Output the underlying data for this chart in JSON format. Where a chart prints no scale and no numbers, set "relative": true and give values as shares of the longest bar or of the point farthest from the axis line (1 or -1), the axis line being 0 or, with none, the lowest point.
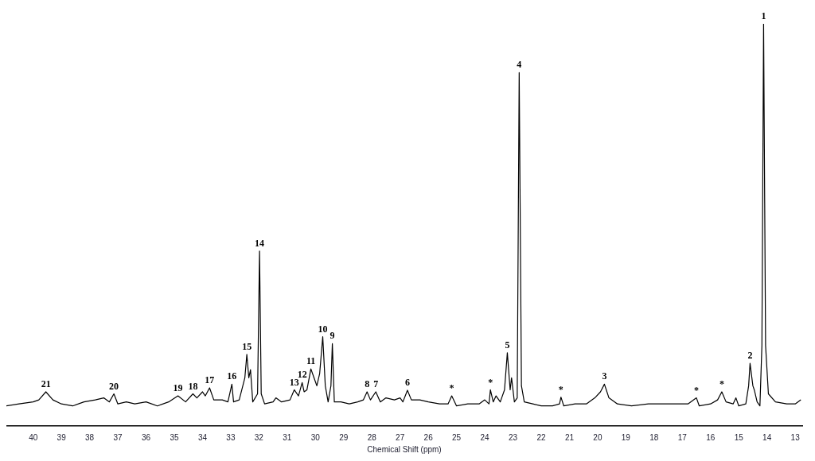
{
  "chart_data": {
    "type": "line",
    "relative": true,
    "xlabel": "Chemical Shift (ppm)",
    "xlim": [
      40.95,
      12.75
    ],
    "xticks": [
      40,
      39,
      38,
      37,
      36,
      35,
      34,
      33,
      32,
      31,
      30,
      29,
      28,
      27,
      26,
      25,
      24,
      23,
      22,
      21,
      20,
      19,
      18,
      17,
      16,
      15,
      14,
      13
    ],
    "grid": false,
    "legend": false,
    "marker": "none",
    "line_style": "solid",
    "series": [
      {
        "color": "#000000",
        "x": [
          40.95,
          40.5,
          40.0,
          39.8,
          39.55,
          39.3,
          39.0,
          38.6,
          38.2,
          37.8,
          37.5,
          37.3,
          37.14,
          37.0,
          36.7,
          36.4,
          36.0,
          35.6,
          35.2,
          34.87,
          34.6,
          34.34,
          34.2,
          34.0,
          33.9,
          33.75,
          33.6,
          33.3,
          33.1,
          32.96,
          32.9,
          32.7,
          32.5,
          32.43,
          32.36,
          32.3,
          32.22,
          32.05,
          31.98,
          31.92,
          31.8,
          31.5,
          31.4,
          31.2,
          30.9,
          30.75,
          30.6,
          30.47,
          30.4,
          30.3,
          30.16,
          30.05,
          29.95,
          29.85,
          29.74,
          29.65,
          29.55,
          29.45,
          29.4,
          29.33,
          29.1,
          28.8,
          28.5,
          28.3,
          28.17,
          28.05,
          27.86,
          27.7,
          27.5,
          27.2,
          27.0,
          26.9,
          26.74,
          26.6,
          26.3,
          26.0,
          25.6,
          25.3,
          25.17,
          25.0,
          24.6,
          24.2,
          24.0,
          23.85,
          23.8,
          23.7,
          23.6,
          23.45,
          23.3,
          23.2,
          23.1,
          23.05,
          22.95,
          22.85,
          22.78,
          22.7,
          22.6,
          22.3,
          22.0,
          21.6,
          21.35,
          21.3,
          21.2,
          20.8,
          20.4,
          20.1,
          19.9,
          19.76,
          19.6,
          19.3,
          18.8,
          18.2,
          17.7,
          17.2,
          16.8,
          16.5,
          16.4,
          16.0,
          15.75,
          15.6,
          15.45,
          15.2,
          15.1,
          15.0,
          14.75,
          14.65,
          14.6,
          14.5,
          14.45,
          14.35,
          14.25,
          14.18,
          14.12,
          14.05,
          13.95,
          13.7,
          13.3,
          13.0,
          12.8
        ],
        "values": [
          0.05,
          0.055,
          0.06,
          0.065,
          0.085,
          0.065,
          0.055,
          0.05,
          0.06,
          0.065,
          0.07,
          0.06,
          0.08,
          0.055,
          0.06,
          0.055,
          0.06,
          0.05,
          0.06,
          0.075,
          0.06,
          0.08,
          0.07,
          0.085,
          0.075,
          0.095,
          0.065,
          0.065,
          0.06,
          0.104,
          0.06,
          0.065,
          0.12,
          0.178,
          0.12,
          0.14,
          0.06,
          0.08,
          0.435,
          0.08,
          0.055,
          0.06,
          0.07,
          0.06,
          0.065,
          0.09,
          0.075,
          0.108,
          0.085,
          0.09,
          0.142,
          0.12,
          0.1,
          0.13,
          0.222,
          0.1,
          0.06,
          0.1,
          0.205,
          0.06,
          0.06,
          0.055,
          0.06,
          0.065,
          0.085,
          0.065,
          0.085,
          0.06,
          0.07,
          0.065,
          0.07,
          0.06,
          0.089,
          0.065,
          0.065,
          0.06,
          0.055,
          0.055,
          0.075,
          0.05,
          0.055,
          0.055,
          0.065,
          0.055,
          0.09,
          0.06,
          0.075,
          0.06,
          0.09,
          0.182,
          0.09,
          0.12,
          0.06,
          0.07,
          0.879,
          0.1,
          0.06,
          0.055,
          0.05,
          0.05,
          0.055,
          0.072,
          0.05,
          0.055,
          0.055,
          0.07,
          0.085,
          0.104,
          0.07,
          0.055,
          0.05,
          0.055,
          0.055,
          0.055,
          0.055,
          0.07,
          0.05,
          0.055,
          0.065,
          0.085,
          0.06,
          0.055,
          0.07,
          0.05,
          0.055,
          0.1,
          0.156,
          0.1,
          0.09,
          0.06,
          0.05,
          0.2,
          1.0,
          0.2,
          0.08,
          0.06,
          0.055,
          0.055,
          0.065
        ]
      }
    ],
    "annotations": [
      {
        "text": "1",
        "x": 14.12,
        "y": 1.0
      },
      {
        "text": "2",
        "x": 14.6,
        "y": 0.156
      },
      {
        "text": "3",
        "x": 19.76,
        "y": 0.104
      },
      {
        "text": "4",
        "x": 22.78,
        "y": 0.879
      },
      {
        "text": "5",
        "x": 23.2,
        "y": 0.182
      },
      {
        "text": "6",
        "x": 26.74,
        "y": 0.089
      },
      {
        "text": "7",
        "x": 27.86,
        "y": 0.085
      },
      {
        "text": "8",
        "x": 28.17,
        "y": 0.085
      },
      {
        "text": "9",
        "x": 29.4,
        "y": 0.205
      },
      {
        "text": "10",
        "x": 29.74,
        "y": 0.222
      },
      {
        "text": "11",
        "x": 30.16,
        "y": 0.142
      },
      {
        "text": "12",
        "x": 30.47,
        "y": 0.108
      },
      {
        "text": "13",
        "x": 30.75,
        "y": 0.09
      },
      {
        "text": "14",
        "x": 31.98,
        "y": 0.435
      },
      {
        "text": "15",
        "x": 32.43,
        "y": 0.178
      },
      {
        "text": "16",
        "x": 32.96,
        "y": 0.104
      },
      {
        "text": "17",
        "x": 33.75,
        "y": 0.095
      },
      {
        "text": "18",
        "x": 34.34,
        "y": 0.08
      },
      {
        "text": "19",
        "x": 34.87,
        "y": 0.075
      },
      {
        "text": "20",
        "x": 37.14,
        "y": 0.08
      },
      {
        "text": "21",
        "x": 39.55,
        "y": 0.085
      },
      {
        "text": "*",
        "x": 25.17,
        "y": 0.075
      },
      {
        "text": "*",
        "x": 23.8,
        "y": 0.09
      },
      {
        "text": "*",
        "x": 21.3,
        "y": 0.072
      },
      {
        "text": "*",
        "x": 16.5,
        "y": 0.07
      },
      {
        "text": "*",
        "x": 15.6,
        "y": 0.085
      }
    ]
  }
}
